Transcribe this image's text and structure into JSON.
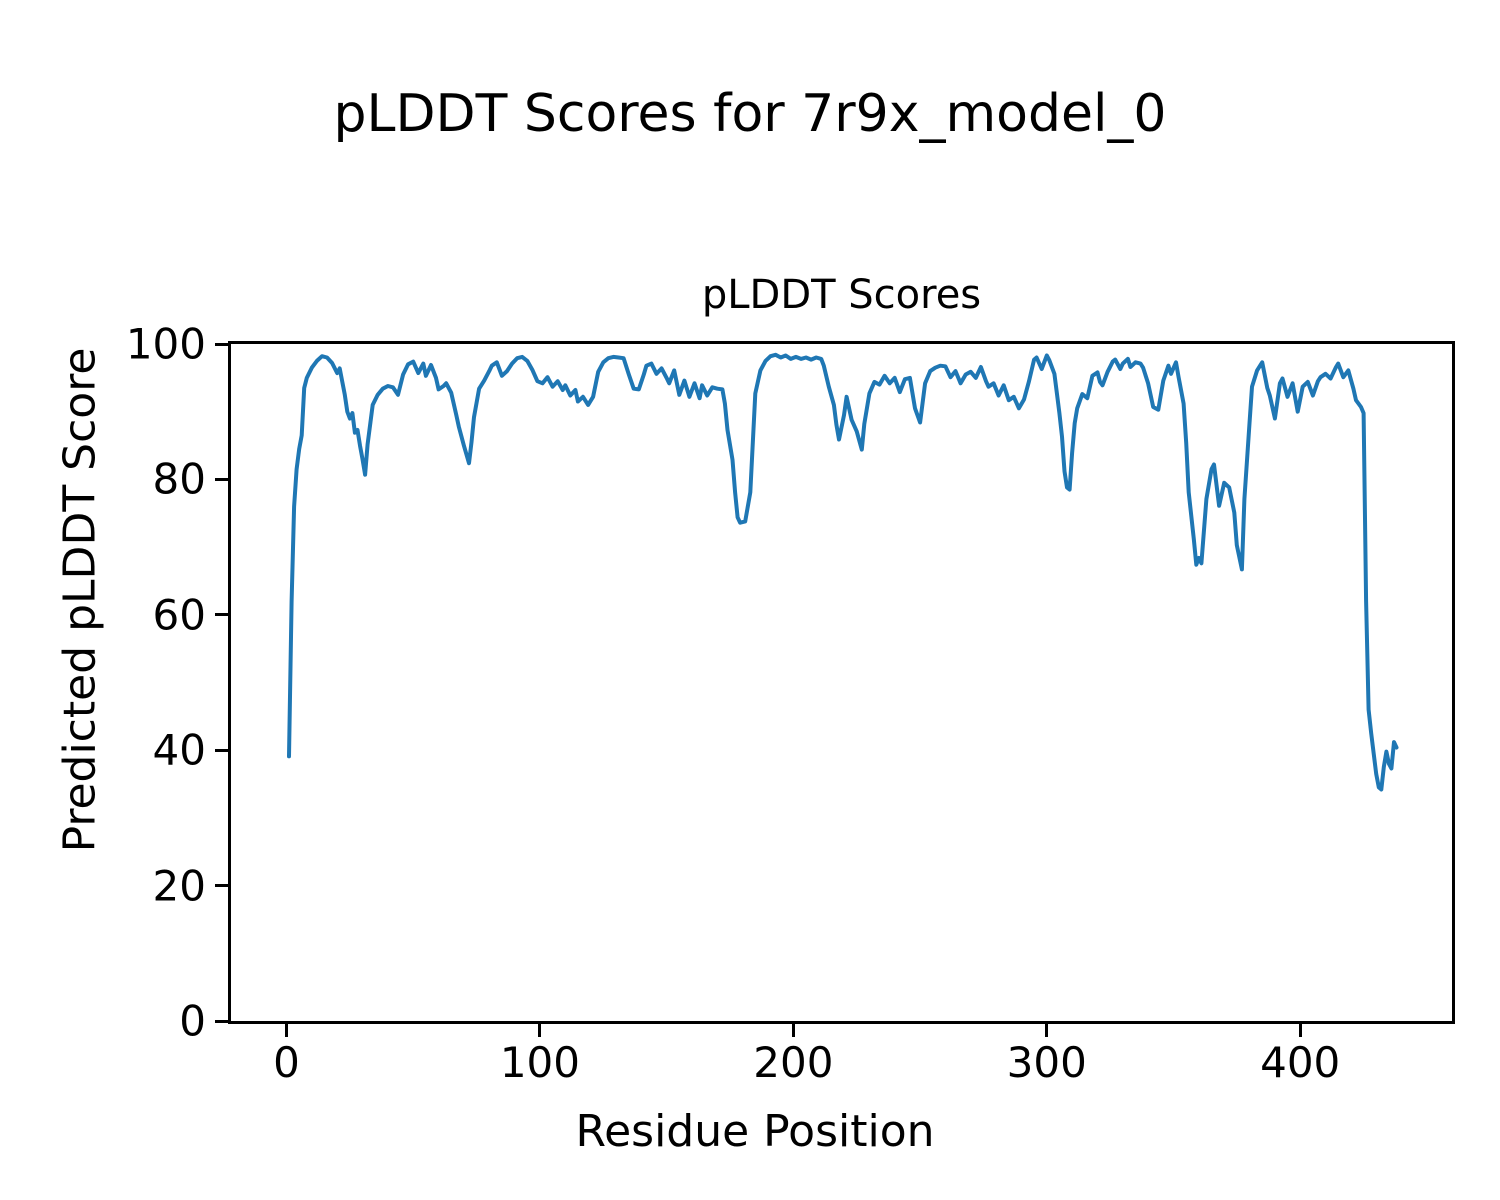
{
  "figure": {
    "suptitle": "pLDDT Scores for 7r9x_model_0",
    "background_color": "#ffffff",
    "text_color": "#000000"
  },
  "axes": {
    "title": "pLDDT Scores",
    "xlabel": "Residue Position",
    "ylabel": "Predicted pLDDT Score"
  },
  "chart_data": {
    "type": "line",
    "title": "pLDDT Scores",
    "suptitle": "pLDDT Scores for 7r9x_model_0",
    "xlabel": "Residue Position",
    "ylabel": "Predicted pLDDT Score",
    "xlim": [
      -21.9,
      459.9
    ],
    "ylim": [
      0,
      100
    ],
    "xticks": [
      0,
      100,
      200,
      300,
      400
    ],
    "yticks": [
      0,
      20,
      40,
      60,
      80,
      100
    ],
    "grid": false,
    "legend": "none",
    "line_color": "#1f77b4",
    "line_width": 4,
    "series": [
      {
        "name": "pLDDT",
        "points": [
          [
            1,
            39.1
          ],
          [
            2,
            62
          ],
          [
            3,
            76
          ],
          [
            4,
            81.5
          ],
          [
            5,
            84.5
          ],
          [
            6,
            86.5
          ],
          [
            7,
            93.5
          ],
          [
            8,
            95
          ],
          [
            10,
            96.5
          ],
          [
            12,
            97.5
          ],
          [
            14,
            98.2
          ],
          [
            16,
            98
          ],
          [
            18,
            97.2
          ],
          [
            20,
            95.7
          ],
          [
            21,
            96.4
          ],
          [
            23,
            92.5
          ],
          [
            24,
            90
          ],
          [
            25,
            89
          ],
          [
            26,
            89.8
          ],
          [
            27,
            86.9
          ],
          [
            28,
            87.3
          ],
          [
            29,
            85
          ],
          [
            30,
            83
          ],
          [
            31,
            80.7
          ],
          [
            32,
            85.2
          ],
          [
            34,
            91
          ],
          [
            36,
            92.5
          ],
          [
            38,
            93.4
          ],
          [
            40,
            93.8
          ],
          [
            42,
            93.6
          ],
          [
            44,
            92.5
          ],
          [
            46,
            95.5
          ],
          [
            48,
            97
          ],
          [
            50,
            97.4
          ],
          [
            52,
            95.7
          ],
          [
            54,
            97.1
          ],
          [
            55,
            95.3
          ],
          [
            57,
            96.9
          ],
          [
            59,
            95
          ],
          [
            60,
            93.3
          ],
          [
            62,
            93.8
          ],
          [
            63,
            94.2
          ],
          [
            65,
            92.8
          ],
          [
            67,
            89.5
          ],
          [
            68,
            87.8
          ],
          [
            70,
            85
          ],
          [
            72,
            82.4
          ],
          [
            73,
            85.5
          ],
          [
            74,
            89.2
          ],
          [
            76,
            93.4
          ],
          [
            78,
            94.6
          ],
          [
            80,
            96
          ],
          [
            81,
            96.8
          ],
          [
            83,
            97.3
          ],
          [
            85,
            95.3
          ],
          [
            87,
            96
          ],
          [
            89,
            97.1
          ],
          [
            91,
            97.9
          ],
          [
            93,
            98.1
          ],
          [
            95,
            97.5
          ],
          [
            97,
            96.2
          ],
          [
            99,
            94.5
          ],
          [
            101,
            94.2
          ],
          [
            103,
            95.1
          ],
          [
            105,
            93.7
          ],
          [
            107,
            94.5
          ],
          [
            109,
            93.2
          ],
          [
            110,
            93.9
          ],
          [
            112,
            92.4
          ],
          [
            114,
            93.2
          ],
          [
            115,
            91.5
          ],
          [
            117,
            92.2
          ],
          [
            119,
            91
          ],
          [
            121,
            92.2
          ],
          [
            123,
            95.9
          ],
          [
            125,
            97.3
          ],
          [
            127,
            97.9
          ],
          [
            129,
            98.1
          ],
          [
            131,
            98
          ],
          [
            133,
            97.9
          ],
          [
            135,
            95.6
          ],
          [
            137,
            93.4
          ],
          [
            139,
            93.3
          ],
          [
            141,
            95.5
          ],
          [
            142,
            96.8
          ],
          [
            144,
            97.1
          ],
          [
            146,
            95.6
          ],
          [
            148,
            96.4
          ],
          [
            150,
            95
          ],
          [
            151,
            94.2
          ],
          [
            153,
            96.1
          ],
          [
            155,
            92.5
          ],
          [
            157,
            94.6
          ],
          [
            159,
            92.2
          ],
          [
            161,
            94.2
          ],
          [
            163,
            92
          ],
          [
            164,
            93.9
          ],
          [
            166,
            92.4
          ],
          [
            168,
            93.6
          ],
          [
            170,
            93.4
          ],
          [
            172,
            93.3
          ],
          [
            173,
            91.2
          ],
          [
            174,
            87.3
          ],
          [
            176,
            82.9
          ],
          [
            177,
            78.1
          ],
          [
            178,
            74.4
          ],
          [
            179,
            73.6
          ],
          [
            181,
            73.8
          ],
          [
            183,
            78.1
          ],
          [
            184,
            85.4
          ],
          [
            185,
            92.7
          ],
          [
            187,
            96.1
          ],
          [
            189,
            97.5
          ],
          [
            191,
            98.2
          ],
          [
            193,
            98.4
          ],
          [
            195,
            98
          ],
          [
            197,
            98.3
          ],
          [
            199,
            97.8
          ],
          [
            201,
            98.1
          ],
          [
            203,
            97.8
          ],
          [
            205,
            98
          ],
          [
            207,
            97.7
          ],
          [
            209,
            98
          ],
          [
            211,
            97.8
          ],
          [
            212,
            96.8
          ],
          [
            214,
            93.7
          ],
          [
            216,
            91
          ],
          [
            217,
            88.1
          ],
          [
            218,
            85.9
          ],
          [
            220,
            89.5
          ],
          [
            221,
            92.2
          ],
          [
            223,
            88.8
          ],
          [
            225,
            87.1
          ],
          [
            227,
            84.4
          ],
          [
            228,
            88.2
          ],
          [
            230,
            92.7
          ],
          [
            232,
            94.4
          ],
          [
            234,
            94
          ],
          [
            236,
            95.3
          ],
          [
            238,
            94.2
          ],
          [
            240,
            95
          ],
          [
            242,
            92.9
          ],
          [
            244,
            94.8
          ],
          [
            246,
            95
          ],
          [
            248,
            90.5
          ],
          [
            250,
            88.4
          ],
          [
            252,
            94.2
          ],
          [
            254,
            96
          ],
          [
            256,
            96.5
          ],
          [
            258,
            96.8
          ],
          [
            260,
            96.7
          ],
          [
            262,
            95.1
          ],
          [
            264,
            96
          ],
          [
            266,
            94.2
          ],
          [
            268,
            95.5
          ],
          [
            270,
            95.9
          ],
          [
            272,
            95
          ],
          [
            274,
            96.6
          ],
          [
            276,
            94.5
          ],
          [
            277,
            93.7
          ],
          [
            279,
            94.2
          ],
          [
            281,
            92.4
          ],
          [
            283,
            93.9
          ],
          [
            285,
            91.7
          ],
          [
            287,
            92.2
          ],
          [
            289,
            90.5
          ],
          [
            291,
            91.8
          ],
          [
            293,
            94.5
          ],
          [
            295,
            97.7
          ],
          [
            296,
            98
          ],
          [
            298,
            96.3
          ],
          [
            300,
            98.3
          ],
          [
            301,
            97.6
          ],
          [
            303,
            95.6
          ],
          [
            304,
            92.7
          ],
          [
            305,
            89.8
          ],
          [
            306,
            86.3
          ],
          [
            307,
            81.2
          ],
          [
            308,
            78.8
          ],
          [
            309,
            78.5
          ],
          [
            310,
            83.9
          ],
          [
            311,
            88.3
          ],
          [
            312,
            90.5
          ],
          [
            314,
            92.6
          ],
          [
            316,
            92
          ],
          [
            318,
            95.3
          ],
          [
            320,
            95.8
          ],
          [
            321,
            94.4
          ],
          [
            322,
            93.9
          ],
          [
            324,
            95.9
          ],
          [
            326,
            97.4
          ],
          [
            327,
            97.7
          ],
          [
            329,
            96.3
          ],
          [
            330,
            97.1
          ],
          [
            332,
            97.8
          ],
          [
            333,
            96.6
          ],
          [
            335,
            97.3
          ],
          [
            337,
            97.1
          ],
          [
            338,
            96.5
          ],
          [
            340,
            94.2
          ],
          [
            342,
            90.7
          ],
          [
            344,
            90.3
          ],
          [
            346,
            94.6
          ],
          [
            348,
            96.8
          ],
          [
            349,
            95.6
          ],
          [
            351,
            97.3
          ],
          [
            352,
            95.1
          ],
          [
            354,
            91.2
          ],
          [
            355,
            85.4
          ],
          [
            356,
            78.1
          ],
          [
            358,
            71.2
          ],
          [
            359,
            67.4
          ],
          [
            360,
            68.4
          ],
          [
            361,
            67.6
          ],
          [
            363,
            77.1
          ],
          [
            365,
            81.5
          ],
          [
            366,
            82.2
          ],
          [
            368,
            76.1
          ],
          [
            370,
            79.5
          ],
          [
            372,
            78.8
          ],
          [
            374,
            75.1
          ],
          [
            375,
            70.3
          ],
          [
            377,
            66.7
          ],
          [
            378,
            77.1
          ],
          [
            380,
            88.3
          ],
          [
            381,
            93.7
          ],
          [
            383,
            96.1
          ],
          [
            385,
            97.3
          ],
          [
            387,
            93.5
          ],
          [
            388,
            92.4
          ],
          [
            390,
            89
          ],
          [
            392,
            94.2
          ],
          [
            393,
            94.9
          ],
          [
            395,
            92.2
          ],
          [
            397,
            94.2
          ],
          [
            399,
            90
          ],
          [
            401,
            93.7
          ],
          [
            403,
            94.4
          ],
          [
            405,
            92.4
          ],
          [
            407,
            94.5
          ],
          [
            408,
            95.1
          ],
          [
            410,
            95.6
          ],
          [
            412,
            94.9
          ],
          [
            414,
            96.5
          ],
          [
            415,
            97.1
          ],
          [
            417,
            95.1
          ],
          [
            419,
            96.1
          ],
          [
            421,
            93.4
          ],
          [
            422,
            91.7
          ],
          [
            424,
            90.7
          ],
          [
            425,
            89.8
          ],
          [
            426,
            62
          ],
          [
            427,
            46
          ],
          [
            428,
            42.5
          ],
          [
            429,
            39.5
          ],
          [
            430,
            36.5
          ],
          [
            431,
            34.5
          ],
          [
            432,
            34.2
          ],
          [
            433,
            37.5
          ],
          [
            434,
            39.8
          ],
          [
            435,
            38
          ],
          [
            436,
            37.3
          ],
          [
            437,
            41.2
          ],
          [
            438,
            40.4
          ]
        ]
      }
    ]
  }
}
